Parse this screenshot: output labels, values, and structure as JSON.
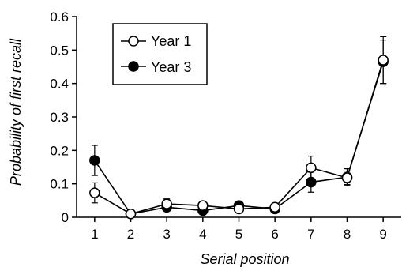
{
  "chart_data": {
    "type": "line",
    "xlabel": "Serial position",
    "ylabel": "Probability of first recall",
    "x": [
      1,
      2,
      3,
      4,
      5,
      6,
      7,
      8,
      9
    ],
    "xlim": [
      0.5,
      9.5
    ],
    "ylim": [
      0,
      0.6
    ],
    "yticks": [
      "0",
      "0.1",
      "0.2",
      "0.3",
      "0.4",
      "0.5",
      "0.6"
    ],
    "xticks": [
      "1",
      "2",
      "3",
      "4",
      "5",
      "6",
      "7",
      "8",
      "9"
    ],
    "grid": false,
    "legend_position": "top-left",
    "series": [
      {
        "name": "Year 1",
        "marker": "open-circle",
        "values": [
          0.073,
          0.01,
          0.04,
          0.035,
          0.025,
          0.03,
          0.148,
          0.118,
          0.47
        ],
        "errors": [
          0.03,
          0.005,
          0.015,
          0.012,
          0.01,
          0.012,
          0.035,
          0.02,
          0.07
        ]
      },
      {
        "name": "Year 3",
        "marker": "filled-circle",
        "values": [
          0.17,
          0.01,
          0.03,
          0.02,
          0.035,
          0.025,
          0.105,
          0.12,
          0.465
        ],
        "errors": [
          0.045,
          0.005,
          0.01,
          0.01,
          0.01,
          0.01,
          0.03,
          0.025,
          0.065
        ]
      }
    ],
    "colors": {
      "line": "#000000",
      "open_fill": "#ffffff",
      "filled_fill": "#000000"
    }
  }
}
